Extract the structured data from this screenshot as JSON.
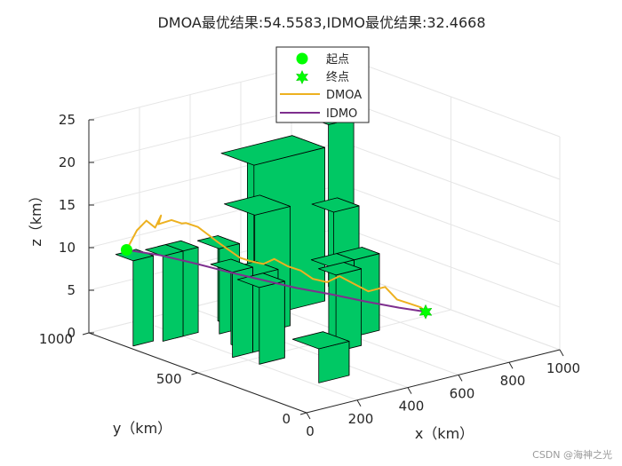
{
  "chart_data": {
    "type": "line",
    "title": "DMOA最优结果:54.5583,IDMO最优结果:32.4668",
    "xlabel": "x（km）",
    "ylabel": "y（km）",
    "zlabel": "z（km）",
    "xlim": [
      0,
      1000
    ],
    "ylim": [
      0,
      1000
    ],
    "zlim": [
      0,
      25
    ],
    "xticks": [
      "0",
      "200",
      "400",
      "600",
      "800",
      "1000"
    ],
    "yticks": [
      "0",
      "500",
      "1000"
    ],
    "zticks": [
      "0",
      "5",
      "10",
      "15",
      "20",
      "25"
    ],
    "grid": true,
    "legend_position": "top-center",
    "legend": [
      "起点",
      "终点",
      "DMOA",
      "IDMO"
    ],
    "start": {
      "x": 20,
      "y": 850,
      "z": 11
    },
    "end": {
      "x": 900,
      "y": 500,
      "z": 0.5
    },
    "obstacles": [
      {
        "x": [
          20,
          100
        ],
        "y": [
          820,
          900
        ],
        "h": 10
      },
      {
        "x": [
          120,
          200
        ],
        "y": [
          800,
          880
        ],
        "h": 10
      },
      {
        "x": [
          170,
          260
        ],
        "y": [
          800,
          880
        ],
        "h": 10
      },
      {
        "x": [
          180,
          260
        ],
        "y": [
          550,
          650
        ],
        "h": 10
      },
      {
        "x": [
          200,
          300
        ],
        "y": [
          450,
          550
        ],
        "h": 9
      },
      {
        "x": [
          300,
          380
        ],
        "y": [
          750,
          850
        ],
        "h": 10
      },
      {
        "x": [
          260,
          360
        ],
        "y": [
          550,
          650
        ],
        "h": 9
      },
      {
        "x": [
          380,
          520
        ],
        "y": [
          680,
          820
        ],
        "h": 14
      },
      {
        "x": [
          220,
          340
        ],
        "y": [
          200,
          320
        ],
        "h": 4
      },
      {
        "x": [
          540,
          620
        ],
        "y": [
          900,
          980
        ],
        "h": 17
      },
      {
        "x": [
          480,
          760
        ],
        "y": [
          800,
          950
        ],
        "h": 18
      },
      {
        "x": [
          640,
          720
        ],
        "y": [
          880,
          960
        ],
        "h": 17
      },
      {
        "x": [
          640,
          740
        ],
        "y": [
          620,
          720
        ],
        "h": 13
      },
      {
        "x": [
          500,
          600
        ],
        "y": [
          480,
          560
        ],
        "h": 9
      },
      {
        "x": [
          460,
          560
        ],
        "y": [
          400,
          480
        ],
        "h": 9
      },
      {
        "x": [
          600,
          700
        ],
        "y": [
          480,
          560
        ],
        "h": 9
      },
      {
        "x": [
          860,
          960
        ],
        "y": [
          900,
          1000
        ],
        "h": 19
      }
    ],
    "series": [
      {
        "name": "DMOA",
        "color": "#EDB120",
        "x": [
          20,
          60,
          90,
          120,
          130,
          150,
          180,
          210,
          250,
          280,
          310,
          340,
          370,
          400,
          430,
          470,
          500,
          540,
          570,
          600,
          640,
          680,
          720,
          760,
          800,
          830,
          860,
          890,
          900
        ],
        "y": [
          850,
          849,
          840,
          835,
          820,
          855,
          830,
          818,
          845,
          825,
          815,
          805,
          790,
          772,
          760,
          745,
          730,
          715,
          690,
          670,
          650,
          640,
          620,
          600,
          570,
          550,
          530,
          510,
          500
        ],
        "z": [
          11,
          13,
          14,
          13,
          14.5,
          13,
          13.5,
          13,
          12.5,
          12,
          11,
          10,
          9,
          8,
          7.5,
          7,
          7.5,
          6.5,
          6,
          5,
          4.5,
          5,
          4,
          3,
          3.5,
          2,
          1.5,
          1,
          0.5
        ]
      },
      {
        "name": "IDMO",
        "color": "#7E2F8E",
        "x": [
          20,
          120,
          220,
          320,
          420,
          520,
          620,
          720,
          820,
          900
        ],
        "y": [
          850,
          810,
          770,
          730,
          690,
          650,
          610,
          570,
          530,
          500
        ],
        "z": [
          11,
          10,
          8.7,
          7.3,
          6,
          4.7,
          3.6,
          2.4,
          1.3,
          0.5
        ]
      }
    ]
  },
  "watermark": "CSDN @海神之光"
}
